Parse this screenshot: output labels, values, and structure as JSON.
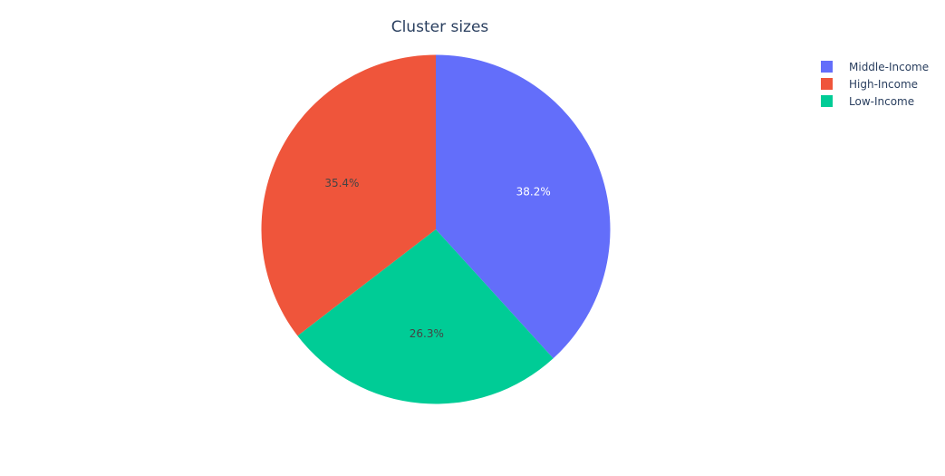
{
  "chart_data": {
    "type": "pie",
    "title": "Cluster sizes",
    "slices": [
      {
        "label": "Middle-Income",
        "percent": 38.2,
        "text": "38.2%",
        "color": "#636efa",
        "text_color": "#ffffff"
      },
      {
        "label": "Low-Income",
        "percent": 26.3,
        "text": "26.3%",
        "color": "#00cc96",
        "text_color": "#444444"
      },
      {
        "label": "High-Income",
        "percent": 35.4,
        "text": "35.4%",
        "color": "#ef553b",
        "text_color": "#444444"
      }
    ],
    "legend": {
      "placement": "top-right",
      "entries": [
        {
          "label": "Middle-Income",
          "color": "#636efa"
        },
        {
          "label": "High-Income",
          "color": "#ef553b"
        },
        {
          "label": "Low-Income",
          "color": "#00cc96"
        }
      ]
    },
    "direction": "clockwise",
    "start_angle_deg": 0
  }
}
